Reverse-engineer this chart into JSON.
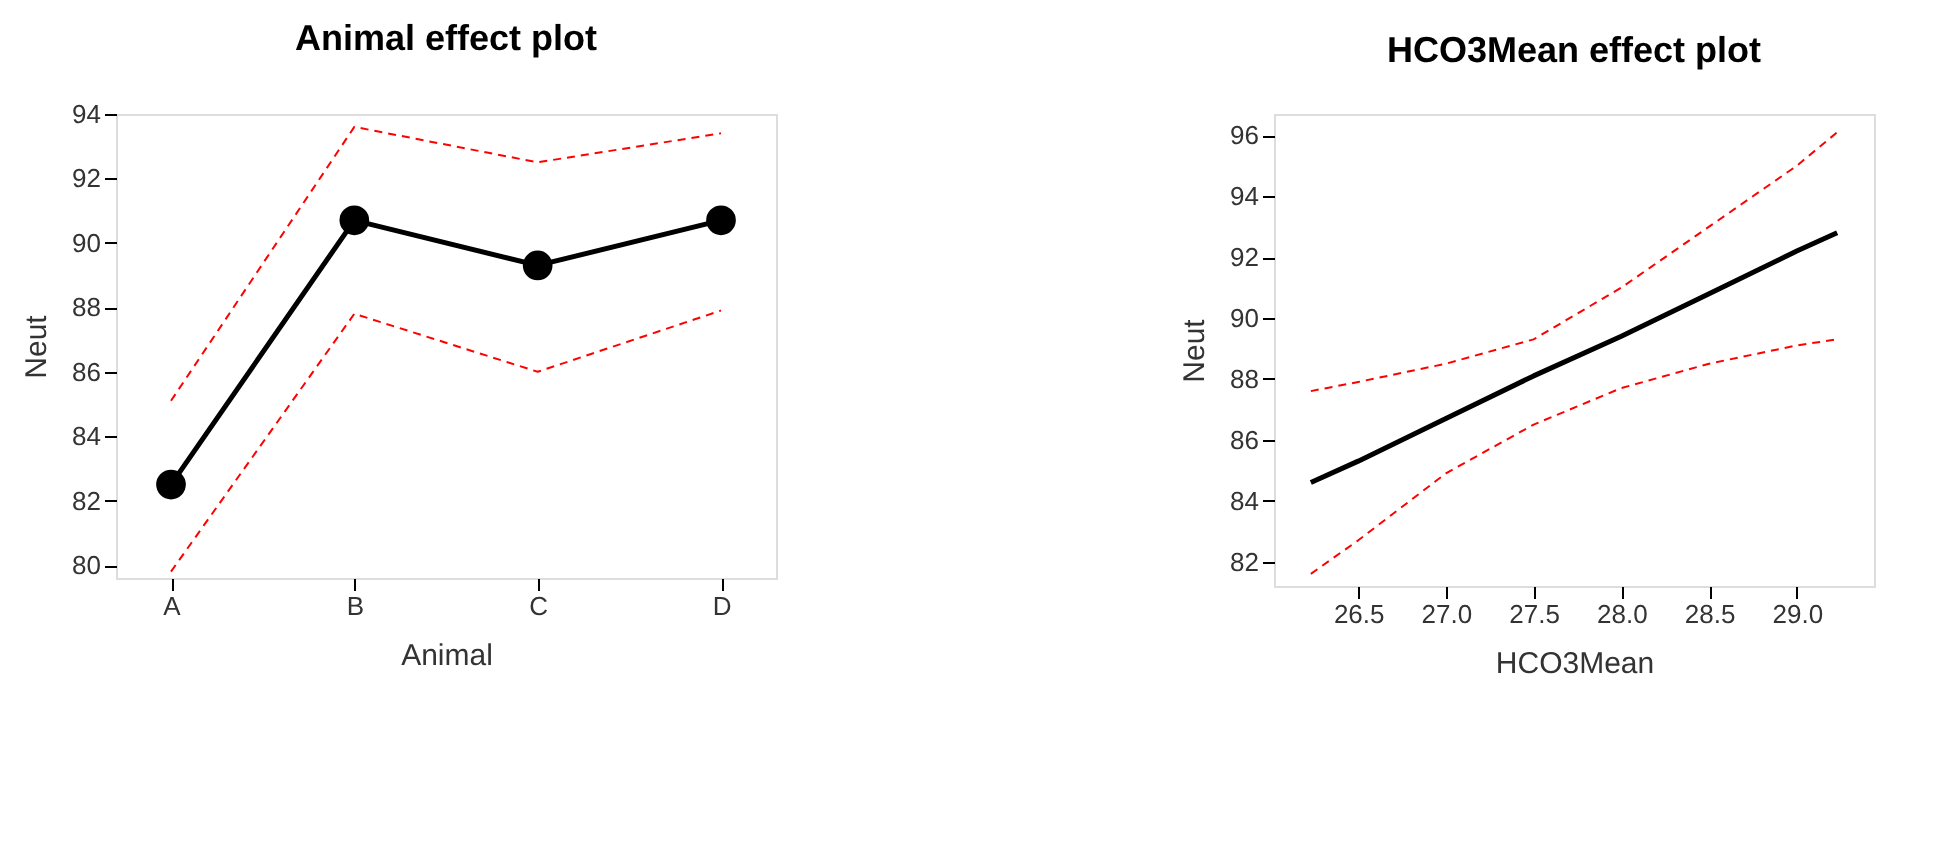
{
  "chart_data": [
    {
      "type": "line",
      "title": "Animal effect plot",
      "xlabel": "Animal",
      "ylabel": "Neut",
      "categories": [
        "A",
        "B",
        "C",
        "D"
      ],
      "ylim": [
        79.6,
        94
      ],
      "yticks": [
        80,
        82,
        84,
        86,
        88,
        90,
        92,
        94
      ],
      "grid": false,
      "series": [
        {
          "color": "#000000",
          "values": [
            82.5,
            90.7,
            89.3,
            90.7
          ],
          "marker": "circle",
          "line_style": "solid"
        },
        {
          "color": "#ff0000",
          "values": [
            85.1,
            93.6,
            92.5,
            93.4
          ],
          "marker": "none",
          "line_style": "dashed"
        },
        {
          "color": "#ff0000",
          "values": [
            79.8,
            87.8,
            86.0,
            87.9
          ],
          "marker": "none",
          "line_style": "dashed"
        }
      ]
    },
    {
      "type": "line",
      "title": "HCO3Mean effect plot",
      "xlabel": "HCO3Mean",
      "ylabel": "Neut",
      "x": [
        26.23,
        26.5,
        27.0,
        27.5,
        28.0,
        28.5,
        29.0,
        29.23
      ],
      "xlim": [
        26.02,
        29.44
      ],
      "xticks": [
        {
          "value": 26.5,
          "label": "26.5"
        },
        {
          "value": 27.0,
          "label": "27.0"
        },
        {
          "value": 27.5,
          "label": "27.5"
        },
        {
          "value": 28.0,
          "label": "28.0"
        },
        {
          "value": 28.5,
          "label": "28.5"
        },
        {
          "value": 29.0,
          "label": "29.0"
        }
      ],
      "ylim": [
        81.2,
        96.7
      ],
      "yticks": [
        82,
        84,
        86,
        88,
        90,
        92,
        94,
        96
      ],
      "grid": false,
      "series": [
        {
          "color": "#000000",
          "values": [
            84.6,
            85.3,
            86.7,
            88.1,
            89.4,
            90.8,
            92.2,
            92.8
          ],
          "marker": "none",
          "line_style": "solid"
        },
        {
          "color": "#ff0000",
          "values": [
            87.6,
            87.9,
            88.5,
            89.3,
            91.0,
            93.0,
            95.0,
            96.1
          ],
          "marker": "none",
          "line_style": "dashed"
        },
        {
          "color": "#ff0000",
          "values": [
            81.6,
            82.7,
            84.9,
            86.5,
            87.7,
            88.5,
            89.1,
            89.3
          ],
          "marker": "none",
          "line_style": "dashed"
        }
      ]
    }
  ]
}
